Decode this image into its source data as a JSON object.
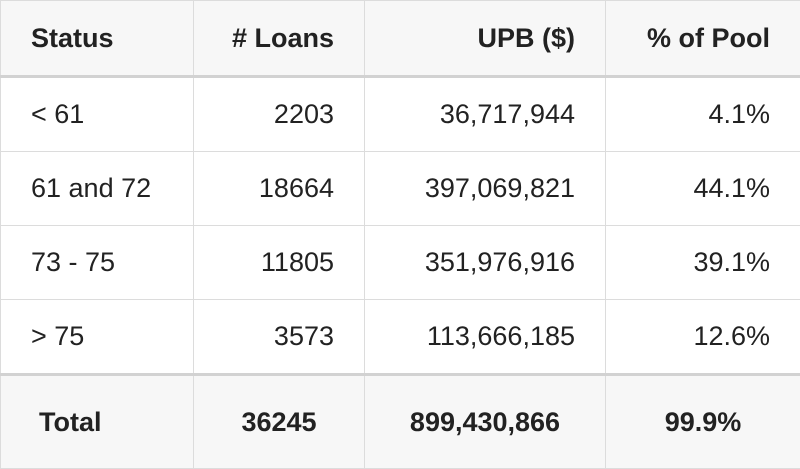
{
  "table": {
    "headers": [
      "Status",
      "# Loans",
      "UPB ($)",
      "% of Pool"
    ],
    "rows": [
      [
        "< 61",
        "2203",
        "36,717,944",
        "4.1%"
      ],
      [
        "61 and 72",
        "18664",
        "397,069,821",
        "44.1%"
      ],
      [
        "73 - 75",
        "11805",
        "351,976,916",
        "39.1%"
      ],
      [
        "> 75",
        "3573",
        "113,666,185",
        "12.6%"
      ]
    ],
    "total": [
      "Total",
      "36245",
      "899,430,866",
      "99.9%"
    ]
  }
}
